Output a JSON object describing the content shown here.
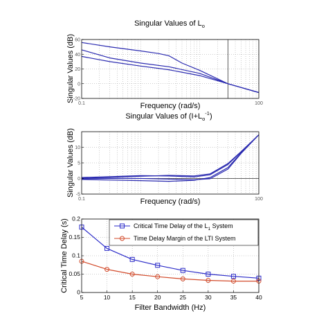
{
  "chart_data": [
    {
      "type": "line",
      "title": "Singular Values of L",
      "title_sub": "o",
      "xlabel": "Frequency (rad/s)",
      "ylabel": "Singular Values (dB)",
      "xscale": "log",
      "xlim": [
        0.1,
        100
      ],
      "ylim": [
        -20,
        60
      ],
      "x_ticklabels": [
        "0.1",
        "100"
      ],
      "y_ticks": [
        -20,
        0,
        20,
        40,
        60
      ],
      "y_ticklabels": [
        "-20",
        "0",
        "20",
        "40",
        "60"
      ],
      "grid": true,
      "vline_x": 30,
      "series": [
        {
          "x": [
            0.1,
            0.3,
            1,
            2,
            3,
            5,
            10,
            30,
            100
          ],
          "values": [
            56,
            50,
            44.5,
            41,
            38,
            28,
            18,
            0,
            -12
          ]
        },
        {
          "x": [
            0.1,
            0.3,
            1,
            3,
            10,
            30,
            100
          ],
          "values": [
            46,
            35,
            28,
            23,
            14,
            0,
            -12
          ]
        },
        {
          "x": [
            0.1,
            0.3,
            1,
            3,
            10,
            30,
            100
          ],
          "values": [
            37,
            30,
            24,
            19,
            11,
            0,
            -12
          ]
        }
      ],
      "color": "#2a2ab0"
    },
    {
      "type": "line",
      "title": "Singular Values of (I+L",
      "title_sub": "o",
      "title_sup": "-1",
      "title_end": ")",
      "xlabel": "Frequency (rad/s)",
      "ylabel": "Singular Values (dB)",
      "xscale": "log",
      "xlim": [
        0.1,
        100
      ],
      "ylim": [
        -5,
        15
      ],
      "x_ticklabels": [
        "0.1",
        "100"
      ],
      "y_ticks": [
        -5,
        0,
        5,
        10
      ],
      "y_ticklabels": [
        "-5",
        "0",
        "5",
        "10"
      ],
      "grid": true,
      "hline_y": 0,
      "series": [
        {
          "x": [
            0.1,
            0.3,
            1,
            3,
            8,
            15,
            30,
            50,
            100
          ],
          "values": [
            0.3,
            0.6,
            0.9,
            0.8,
            0.5,
            1.2,
            4.5,
            8.5,
            14
          ]
        },
        {
          "x": [
            0.1,
            0.3,
            1,
            3,
            8,
            15,
            30,
            50,
            100
          ],
          "values": [
            0.1,
            0.3,
            0.7,
            1.0,
            0.8,
            1.5,
            4.8,
            8.6,
            14
          ]
        },
        {
          "x": [
            0.1,
            0.3,
            1,
            3,
            8,
            15,
            30,
            50,
            100
          ],
          "values": [
            -0.3,
            -0.5,
            -0.7,
            -0.9,
            -0.6,
            0.3,
            3.5,
            8.2,
            14
          ]
        },
        {
          "x": [
            0.1,
            0.3,
            1,
            3,
            8,
            15,
            30,
            50,
            100
          ],
          "values": [
            -0.1,
            0,
            0,
            -0.2,
            -0.4,
            -0.1,
            3.0,
            8.0,
            14
          ]
        }
      ],
      "color": "#2a2ab0"
    },
    {
      "type": "line",
      "xlabel": "Filter Bandwidth (Hz)",
      "ylabel": "Critical Time Delay (s)",
      "xlim": [
        5,
        40
      ],
      "ylim": [
        0,
        0.2
      ],
      "x_ticks": [
        5,
        10,
        15,
        20,
        25,
        30,
        35,
        40
      ],
      "x_ticklabels": [
        "5",
        "10",
        "15",
        "20",
        "25",
        "30",
        "35",
        "40"
      ],
      "y_ticks": [
        0,
        0.05,
        0.1,
        0.15,
        0.2
      ],
      "y_ticklabels": [
        "0",
        "0.05",
        "0.1",
        "0.15",
        "0.2"
      ],
      "grid": true,
      "legend_position": "top-right",
      "categories": [
        5,
        10,
        15,
        20,
        25,
        30,
        35,
        40
      ],
      "series": [
        {
          "name_main": "Critical Time Delay of the L",
          "name_sub": "1",
          "name_end": " System",
          "values": [
            0.178,
            0.12,
            0.09,
            0.074,
            0.06,
            0.05,
            0.044,
            0.039
          ],
          "marker": "square",
          "color": "#2a2ac8"
        },
        {
          "name": "Time Delay Margin of the LTI System",
          "values": [
            0.085,
            0.063,
            0.05,
            0.043,
            0.037,
            0.033,
            0.031,
            0.031
          ],
          "marker": "circle",
          "color": "#d24a2a"
        }
      ]
    }
  ]
}
